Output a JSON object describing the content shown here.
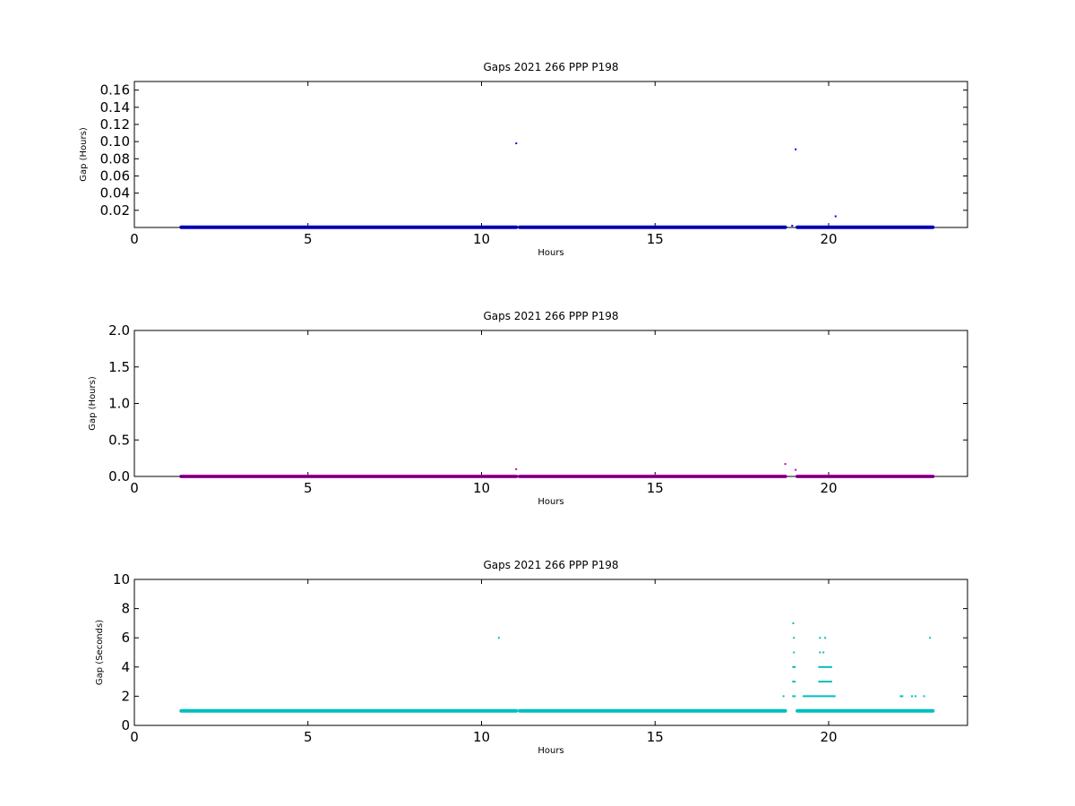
{
  "chart_data": [
    {
      "type": "scatter",
      "title": "Gaps 2021 266 PPP  P198",
      "xlabel": "Hours",
      "ylabel": "Gap (Hours)",
      "xlim": [
        0,
        24
      ],
      "ylim": [
        0,
        0.17
      ],
      "xticks": [
        0,
        5,
        10,
        15,
        20
      ],
      "yticks": [
        0.02,
        0.04,
        0.06,
        0.08,
        0.1,
        0.12,
        0.14,
        0.16
      ],
      "ytick_labels": [
        "0.02",
        "0.04",
        "0.06",
        "0.08",
        "0.10",
        "0.12",
        "0.14",
        "0.16"
      ],
      "color": "#0000ff",
      "grid": false,
      "baseline_segments": [
        {
          "x_start": 1.35,
          "x_end": 11.0,
          "y": 0.000278
        },
        {
          "x_start": 11.1,
          "x_end": 18.75,
          "y": 0.000278
        },
        {
          "x_start": 19.1,
          "x_end": 23.0,
          "y": 0.000278
        }
      ],
      "points": [
        {
          "x": 11.0,
          "y": 0.098
        },
        {
          "x": 19.05,
          "y": 0.091
        },
        {
          "x": 20.2,
          "y": 0.013
        },
        {
          "x": 18.95,
          "y": 0.002
        }
      ]
    },
    {
      "type": "scatter",
      "title": "Gaps 2021 266 PPP  P198",
      "xlabel": "Hours",
      "ylabel": "Gap (Hours)",
      "xlim": [
        0,
        24
      ],
      "ylim": [
        0,
        2.0
      ],
      "xticks": [
        0,
        5,
        10,
        15,
        20
      ],
      "yticks": [
        0.0,
        0.5,
        1.0,
        1.5,
        2.0
      ],
      "ytick_labels": [
        "0.0",
        "0.5",
        "1.0",
        "1.5",
        "2.0"
      ],
      "color": "#bf00bf",
      "grid": false,
      "baseline_segments": [
        {
          "x_start": 1.35,
          "x_end": 11.0,
          "y": 0.0
        },
        {
          "x_start": 11.1,
          "x_end": 18.75,
          "y": 0.0
        },
        {
          "x_start": 19.1,
          "x_end": 23.0,
          "y": 0.0
        }
      ],
      "points": [
        {
          "x": 11.0,
          "y": 0.1
        },
        {
          "x": 18.75,
          "y": 0.17
        },
        {
          "x": 19.05,
          "y": 0.09
        }
      ]
    },
    {
      "type": "scatter",
      "title": "Gaps 2021 266 PPP  P198",
      "xlabel": "Hours",
      "ylabel": "Gap (Seconds)",
      "xlim": [
        0,
        24
      ],
      "ylim": [
        0,
        10
      ],
      "xticks": [
        0,
        5,
        10,
        15,
        20
      ],
      "yticks": [
        0,
        2,
        4,
        6,
        8,
        10
      ],
      "ytick_labels": [
        "0",
        "2",
        "4",
        "6",
        "8",
        "10"
      ],
      "color": "#00bfbf",
      "grid": false,
      "baseline_segments": [
        {
          "x_start": 1.35,
          "x_end": 11.0,
          "y": 1
        },
        {
          "x_start": 11.1,
          "x_end": 18.75,
          "y": 1
        },
        {
          "x_start": 19.1,
          "x_end": 23.0,
          "y": 1
        }
      ],
      "line_segments": [
        {
          "x_start": 18.95,
          "x_end": 19.05,
          "y": 4
        },
        {
          "x_start": 18.95,
          "x_end": 19.05,
          "y": 3
        },
        {
          "x_start": 18.95,
          "x_end": 19.05,
          "y": 2
        },
        {
          "x_start": 19.25,
          "x_end": 20.2,
          "y": 2
        },
        {
          "x_start": 19.7,
          "x_end": 20.1,
          "y": 3
        },
        {
          "x_start": 19.7,
          "x_end": 20.1,
          "y": 4
        },
        {
          "x_start": 22.05,
          "x_end": 22.15,
          "y": 2
        }
      ],
      "points": [
        {
          "x": 10.5,
          "y": 6
        },
        {
          "x": 18.7,
          "y": 2
        },
        {
          "x": 18.98,
          "y": 7
        },
        {
          "x": 19.0,
          "y": 6
        },
        {
          "x": 19.0,
          "y": 5
        },
        {
          "x": 19.75,
          "y": 6
        },
        {
          "x": 19.9,
          "y": 6
        },
        {
          "x": 19.75,
          "y": 5
        },
        {
          "x": 19.85,
          "y": 5
        },
        {
          "x": 22.4,
          "y": 2
        },
        {
          "x": 22.5,
          "y": 2
        },
        {
          "x": 22.75,
          "y": 2
        },
        {
          "x": 22.92,
          "y": 6
        }
      ]
    }
  ]
}
